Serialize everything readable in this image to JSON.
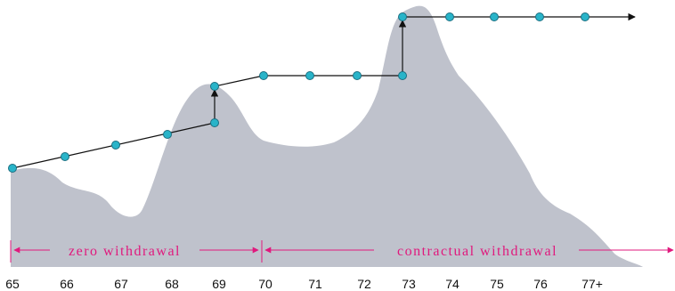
{
  "colors": {
    "area_fill": "#bfc2cc",
    "path_line": "#111111",
    "marker_fill": "#29b4c9",
    "marker_stroke": "#1b6e80",
    "region_color": "#e0197d"
  },
  "x_axis": {
    "ticks": [
      "65",
      "66",
      "67",
      "68",
      "69",
      "70",
      "71",
      "72",
      "73",
      "74",
      "75",
      "76",
      "77+"
    ]
  },
  "regions": [
    {
      "label": "zero withdrawal"
    },
    {
      "label": "contractual withdrawal"
    }
  ]
}
